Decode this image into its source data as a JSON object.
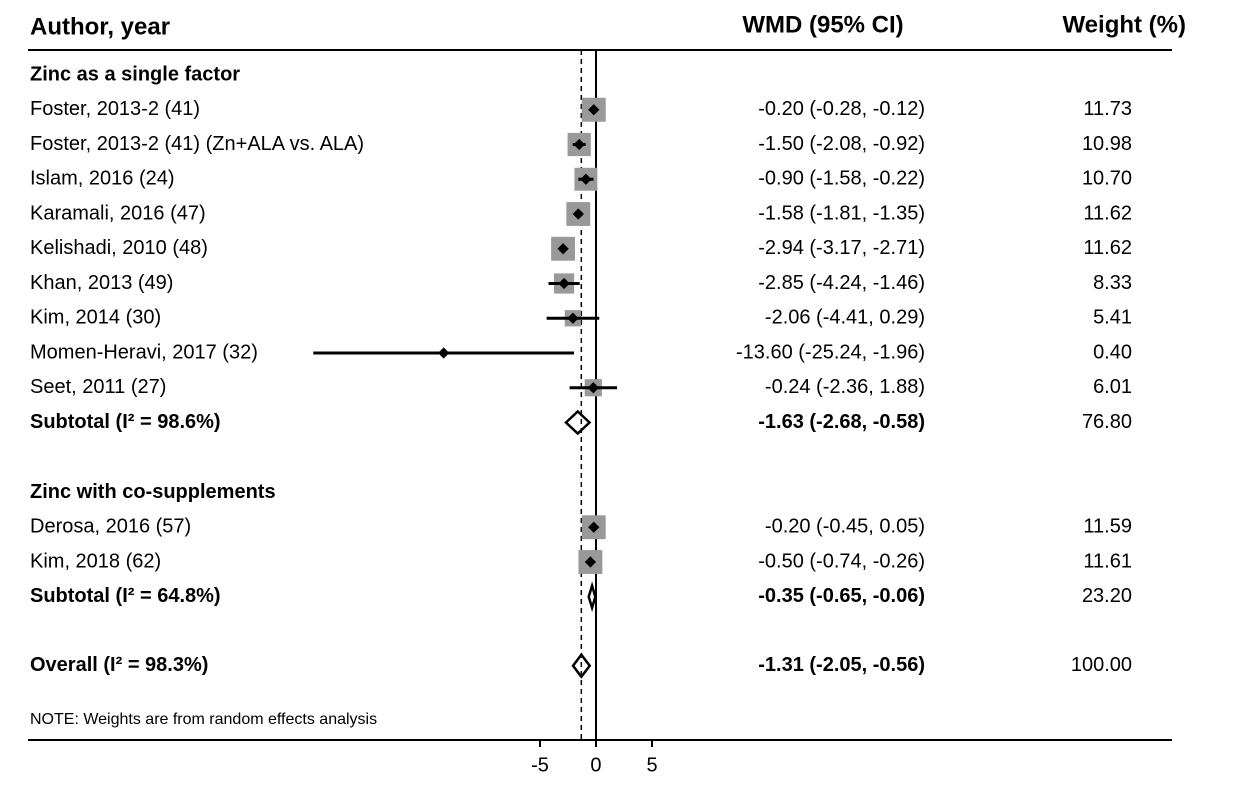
{
  "chart_data": {
    "type": "forest",
    "columns": [
      "Author, year",
      "WMD (95% CI)",
      "Weight (%)"
    ],
    "groups": [
      {
        "name": "Zinc as a single factor",
        "studies": [
          {
            "label": "Foster, 2013-2 (41)",
            "estimate": -0.2,
            "lower": -0.28,
            "upper": -0.12,
            "ci_label": "-0.20 (-0.28, -0.12)",
            "weight": 11.73,
            "weight_label": "11.73"
          },
          {
            "label": "Foster, 2013-2 (41) (Zn+ALA vs. ALA)",
            "estimate": -1.5,
            "lower": -2.08,
            "upper": -0.92,
            "ci_label": "-1.50 (-2.08, -0.92)",
            "weight": 10.98,
            "weight_label": "10.98"
          },
          {
            "label": "Islam, 2016 (24)",
            "estimate": -0.9,
            "lower": -1.58,
            "upper": -0.22,
            "ci_label": "-0.90 (-1.58, -0.22)",
            "weight": 10.7,
            "weight_label": "10.70"
          },
          {
            "label": "Karamali, 2016 (47)",
            "estimate": -1.58,
            "lower": -1.81,
            "upper": -1.35,
            "ci_label": "-1.58 (-1.81, -1.35)",
            "weight": 11.62,
            "weight_label": "11.62"
          },
          {
            "label": "Kelishadi, 2010 (48)",
            "estimate": -2.94,
            "lower": -3.17,
            "upper": -2.71,
            "ci_label": "-2.94 (-3.17, -2.71)",
            "weight": 11.62,
            "weight_label": "11.62"
          },
          {
            "label": "Khan, 2013 (49)",
            "estimate": -2.85,
            "lower": -4.24,
            "upper": -1.46,
            "ci_label": "-2.85 (-4.24, -1.46)",
            "weight": 8.33,
            "weight_label": "8.33"
          },
          {
            "label": "Kim, 2014 (30)",
            "estimate": -2.06,
            "lower": -4.41,
            "upper": 0.29,
            "ci_label": "-2.06 (-4.41, 0.29)",
            "weight": 5.41,
            "weight_label": "5.41"
          },
          {
            "label": "Momen-Heravi, 2017 (32)",
            "estimate": -13.6,
            "lower": -25.24,
            "upper": -1.96,
            "ci_label": "-13.60 (-25.24, -1.96)",
            "weight": 0.4,
            "weight_label": "0.40"
          },
          {
            "label": "Seet, 2011 (27)",
            "estimate": -0.24,
            "lower": -2.36,
            "upper": 1.88,
            "ci_label": "-0.24 (-2.36, 1.88)",
            "weight": 6.01,
            "weight_label": "6.01"
          }
        ],
        "subtotal": {
          "label": "Subtotal (I² = 98.6%)",
          "estimate": -1.63,
          "lower": -2.68,
          "upper": -0.58,
          "ci_label": "-1.63 (-2.68, -0.58)",
          "weight": 76.8,
          "weight_label": "76.80"
        }
      },
      {
        "name": "Zinc with co-supplements",
        "studies": [
          {
            "label": "Derosa, 2016 (57)",
            "estimate": -0.2,
            "lower": -0.45,
            "upper": 0.05,
            "ci_label": "-0.20 (-0.45, 0.05)",
            "weight": 11.59,
            "weight_label": "11.59"
          },
          {
            "label": "Kim, 2018 (62)",
            "estimate": -0.5,
            "lower": -0.74,
            "upper": -0.26,
            "ci_label": "-0.50 (-0.74, -0.26)",
            "weight": 11.61,
            "weight_label": "11.61"
          }
        ],
        "subtotal": {
          "label": "Subtotal (I² = 64.8%)",
          "estimate": -0.35,
          "lower": -0.65,
          "upper": -0.06,
          "ci_label": "-0.35 (-0.65, -0.06)",
          "weight": 23.2,
          "weight_label": "23.20"
        }
      }
    ],
    "overall": {
      "label": "Overall (I² = 98.3%)",
      "estimate": -1.31,
      "lower": -2.05,
      "upper": -0.56,
      "ci_label": "-1.31 (-2.05, -0.56)",
      "weight": 100.0,
      "weight_label": "100.00"
    },
    "note": "NOTE: Weights are from random effects analysis",
    "xlim": [
      -25.3,
      5
    ],
    "xticks": [
      -5,
      0,
      5
    ]
  }
}
